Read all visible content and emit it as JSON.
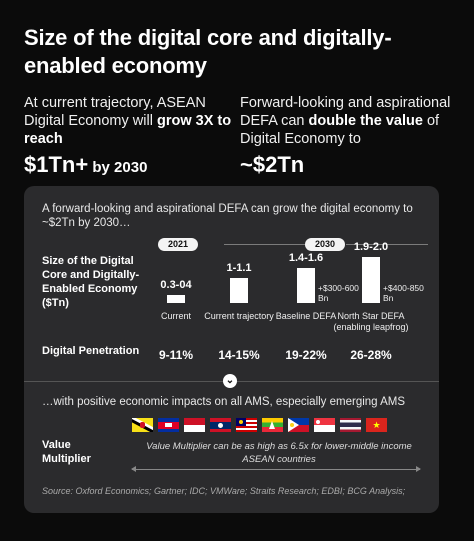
{
  "title": "Size of the digital core and digitally-enabled economy",
  "left": {
    "intro_a": "At current trajectory, ASEAN Digital Economy will ",
    "intro_bold": "grow 3X to reach",
    "big_value": "$1Tn+",
    "big_suffix": " by 2030"
  },
  "right": {
    "intro_a": "Forward-looking and aspirational DEFA can ",
    "intro_bold": "double the value",
    "intro_b": " of Digital Economy to",
    "big_value": "~$2Tn"
  },
  "panel": {
    "lead": "A forward-looking and aspirational DEFA can grow the digital economy to ~$2Tn by 2030…",
    "year_2021": "2021",
    "year_2030": "2030",
    "row1_label": "Size of the Digital Core and Digitally-Enabled Economy ($Tn)",
    "row2_label": "Digital Penetration",
    "positive": "…with positive economic impacts on all AMS, especially emerging AMS",
    "vm_label": "Value Multiplier",
    "vm_text": "Value Multiplier can be as high as 6.5x for lower-middle income ASEAN countries",
    "source": "Source: Oxford Economics; Gartner; IDC; VMWare; Straits Research; EDBI; BCG Analysis;"
  },
  "chart_data": {
    "type": "bar",
    "categories": [
      "Current",
      "Current trajectory",
      "Baseline DEFA",
      "North Star DEFA (enabling leapfrog)"
    ],
    "range_labels": [
      "0.3-04",
      "1-1.1",
      "1.4-1.6",
      "1.9-2.0"
    ],
    "values": [
      0.35,
      1.05,
      1.5,
      1.95
    ],
    "ylim": [
      0,
      2.0
    ],
    "increments": [
      "",
      "",
      "+$300-600 Bn",
      "+$400-850 Bn"
    ],
    "digital_penetration": [
      "9-11%",
      "14-15%",
      "19-22%",
      "26-28%"
    ],
    "years": [
      "2021",
      "2030",
      "2030",
      "2030"
    ]
  },
  "flags": [
    "brunei",
    "cambodia",
    "indonesia",
    "laos",
    "malaysia",
    "myanmar",
    "philippines",
    "singapore",
    "thailand",
    "vietnam"
  ],
  "colors": {
    "background": "#0b0b0b",
    "panel": "#2b2b2d",
    "bar": "#ffffff"
  }
}
